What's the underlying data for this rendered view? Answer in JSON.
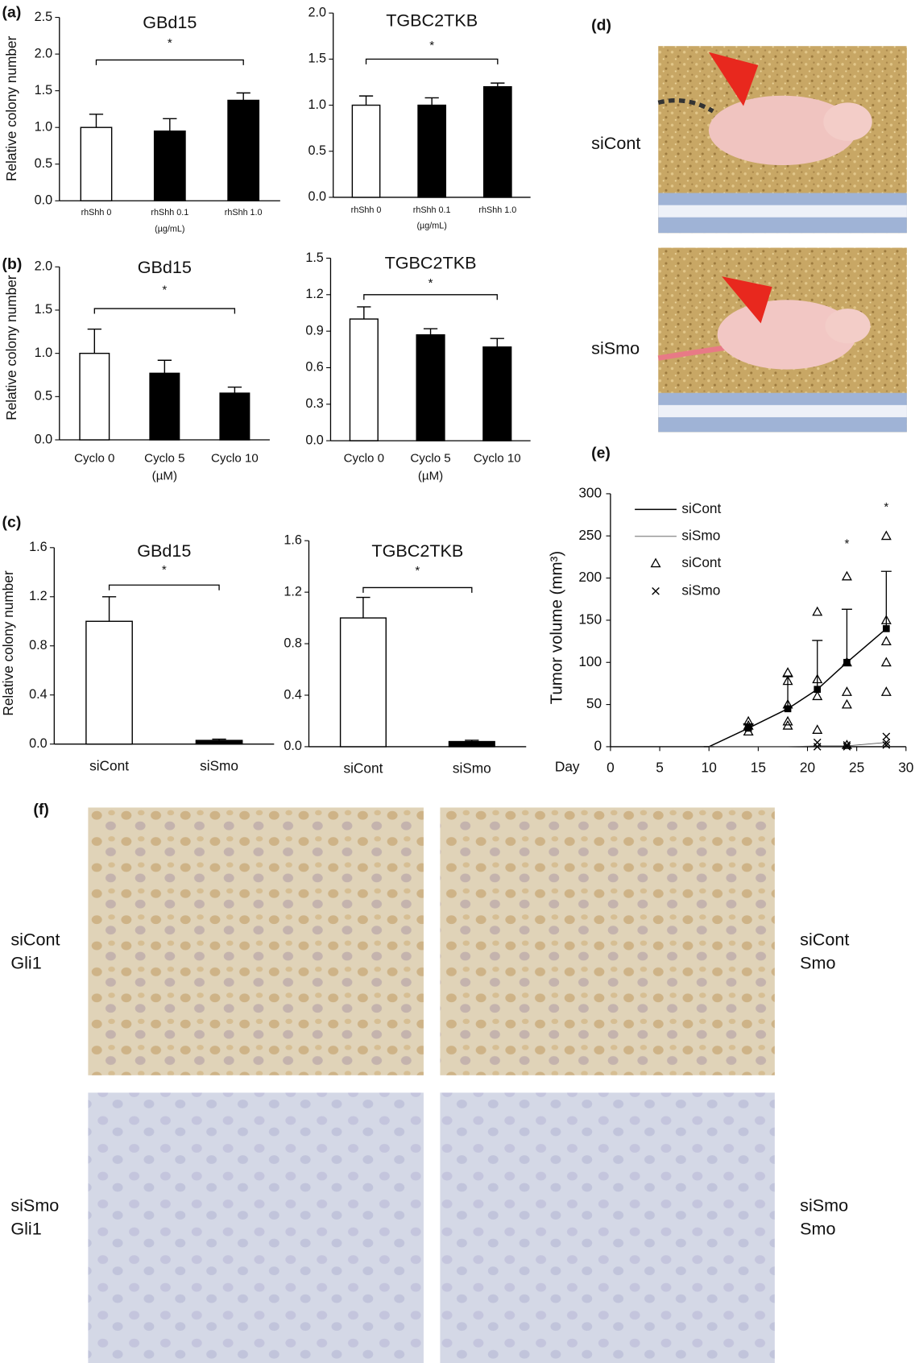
{
  "chart_data": [
    {
      "type": "bar",
      "panel": "(a)",
      "title": "GBd15",
      "y_label": "Relative colony number",
      "categories": [
        "rhShh 0",
        "rhShh 0.1",
        "rhShh 1.0"
      ],
      "category_note": "(µg/mL)",
      "values": [
        1.0,
        0.95,
        1.37
      ],
      "errors": [
        0.18,
        0.17,
        0.1
      ],
      "colors": [
        "#ffffff",
        "#000000",
        "#000000"
      ],
      "significance": "*",
      "ylim": [
        0,
        2.5
      ],
      "yticks": [
        {
          "value": 0,
          "label": "0.0"
        },
        0.5,
        {
          "value": 1,
          "label": "1.0"
        },
        1.5,
        {
          "value": 2,
          "label": "2.0"
        },
        2.5
      ]
    },
    {
      "type": "bar",
      "title": "TGBC2TKB",
      "categories": [
        "rhShh 0",
        "rhShh 0.1",
        "rhShh 1.0"
      ],
      "category_note": "(µg/mL)",
      "values": [
        1.0,
        1.0,
        1.2
      ],
      "errors": [
        0.1,
        0.08,
        0.04
      ],
      "colors": [
        "#ffffff",
        "#000000",
        "#000000"
      ],
      "significance": "*",
      "ylim": [
        0,
        2.0
      ],
      "yticks": [
        {
          "value": 0,
          "label": "0.0"
        },
        0.5,
        {
          "value": 1,
          "label": "1.0"
        },
        1.5,
        {
          "value": 2,
          "label": "2.0"
        }
      ]
    },
    {
      "type": "bar",
      "panel": "(b)",
      "title": "GBd15",
      "y_label": "Relative colony number",
      "categories": [
        "Cyclo 0",
        "Cyclo 5",
        "Cyclo 10"
      ],
      "category_note": "(µM)",
      "values": [
        1.0,
        0.77,
        0.54
      ],
      "errors": [
        0.28,
        0.15,
        0.07
      ],
      "colors": [
        "#ffffff",
        "#000000",
        "#000000"
      ],
      "significance": "*",
      "ylim": [
        0,
        2.0
      ],
      "yticks": [
        {
          "value": 0,
          "label": "0.0"
        },
        0.5,
        {
          "value": 1,
          "label": "1.0"
        },
        1.5,
        {
          "value": 2,
          "label": "2.0"
        }
      ]
    },
    {
      "type": "bar",
      "title": "TGBC2TKB",
      "categories": [
        "Cyclo 0",
        "Cyclo 5",
        "Cyclo 10"
      ],
      "category_note": "(µM)",
      "values": [
        1.0,
        0.87,
        0.77
      ],
      "errors": [
        0.1,
        0.05,
        0.07
      ],
      "colors": [
        "#ffffff",
        "#000000",
        "#000000"
      ],
      "significance": "*",
      "ylim": [
        0,
        1.5
      ],
      "yticks": [
        {
          "value": 0,
          "label": "0.0"
        },
        0.3,
        0.6,
        0.9,
        1.2,
        1.5
      ]
    },
    {
      "type": "bar",
      "panel": "(c)",
      "title": "GBd15",
      "y_label": "Relative colony number",
      "categories": [
        "siCont",
        "siSmo"
      ],
      "values": [
        1.0,
        0.03
      ],
      "errors": [
        0.2,
        0.01
      ],
      "colors": [
        "#ffffff",
        "#000000"
      ],
      "significance": "*",
      "ylim": [
        0,
        1.6
      ],
      "yticks": [
        {
          "value": 0,
          "label": "0.0"
        },
        0.4,
        0.8,
        1.2,
        1.6
      ]
    },
    {
      "type": "bar",
      "title": "TGBC2TKB",
      "categories": [
        "siCont",
        "siSmo"
      ],
      "values": [
        1.0,
        0.04
      ],
      "errors": [
        0.16,
        0.01
      ],
      "colors": [
        "#ffffff",
        "#000000"
      ],
      "significance": "*",
      "ylim": [
        0,
        1.6
      ],
      "yticks": [
        {
          "value": 0,
          "label": "0.0"
        },
        0.4,
        0.8,
        1.2,
        1.6
      ]
    },
    {
      "type": "line",
      "panel": "(e)",
      "x_label": "Day",
      "y_label": "Tumor volume (mm³)",
      "xlim": [
        0,
        30
      ],
      "xticks": [
        0,
        5,
        10,
        15,
        20,
        25,
        30
      ],
      "ylim": [
        0,
        300
      ],
      "yticks": [
        0,
        50,
        100,
        150,
        200,
        250,
        300
      ],
      "legend": "upper left",
      "annotations": [
        "*",
        "*"
      ],
      "series": [
        {
          "name": "siCont",
          "marker": "line",
          "color": "#000000",
          "x": [
            10,
            14,
            18,
            21,
            24,
            28
          ],
          "values": [
            0,
            22,
            45,
            68,
            100,
            140
          ],
          "errors": [
            0,
            5,
            38,
            58,
            63,
            68
          ]
        },
        {
          "name": "siSmo",
          "marker": "line",
          "color": "#555555",
          "x": [
            10,
            14,
            18,
            21,
            24,
            28
          ],
          "values": [
            0,
            0,
            0,
            1,
            1,
            5
          ]
        },
        {
          "name": "siCont",
          "marker": "triangle",
          "color": "#000000",
          "x": [
            14,
            14,
            14,
            18,
            18,
            18,
            18,
            18,
            21,
            21,
            21,
            21,
            24,
            24,
            24,
            24,
            24,
            28,
            28,
            28,
            28,
            28
          ],
          "values": [
            18,
            25,
            30,
            88,
            78,
            50,
            30,
            25,
            160,
            80,
            60,
            20,
            202,
            100,
            65,
            50,
            2,
            250,
            150,
            125,
            100,
            65
          ]
        },
        {
          "name": "siSmo",
          "marker": "x",
          "color": "#000000",
          "x": [
            21,
            21,
            24,
            24,
            28,
            28,
            28
          ],
          "values": [
            0,
            5,
            0,
            2,
            12,
            5,
            2
          ]
        }
      ]
    }
  ],
  "photos": {
    "d": {
      "panel": "(d)",
      "labels": [
        "siCont",
        "siSmo"
      ]
    },
    "f": {
      "panel": "(f)",
      "labels": [
        [
          "siCont",
          "Gli1"
        ],
        [
          "siCont",
          "Smo"
        ],
        [
          "siSmo",
          "Gli1"
        ],
        [
          "siSmo",
          "Smo"
        ]
      ]
    }
  }
}
